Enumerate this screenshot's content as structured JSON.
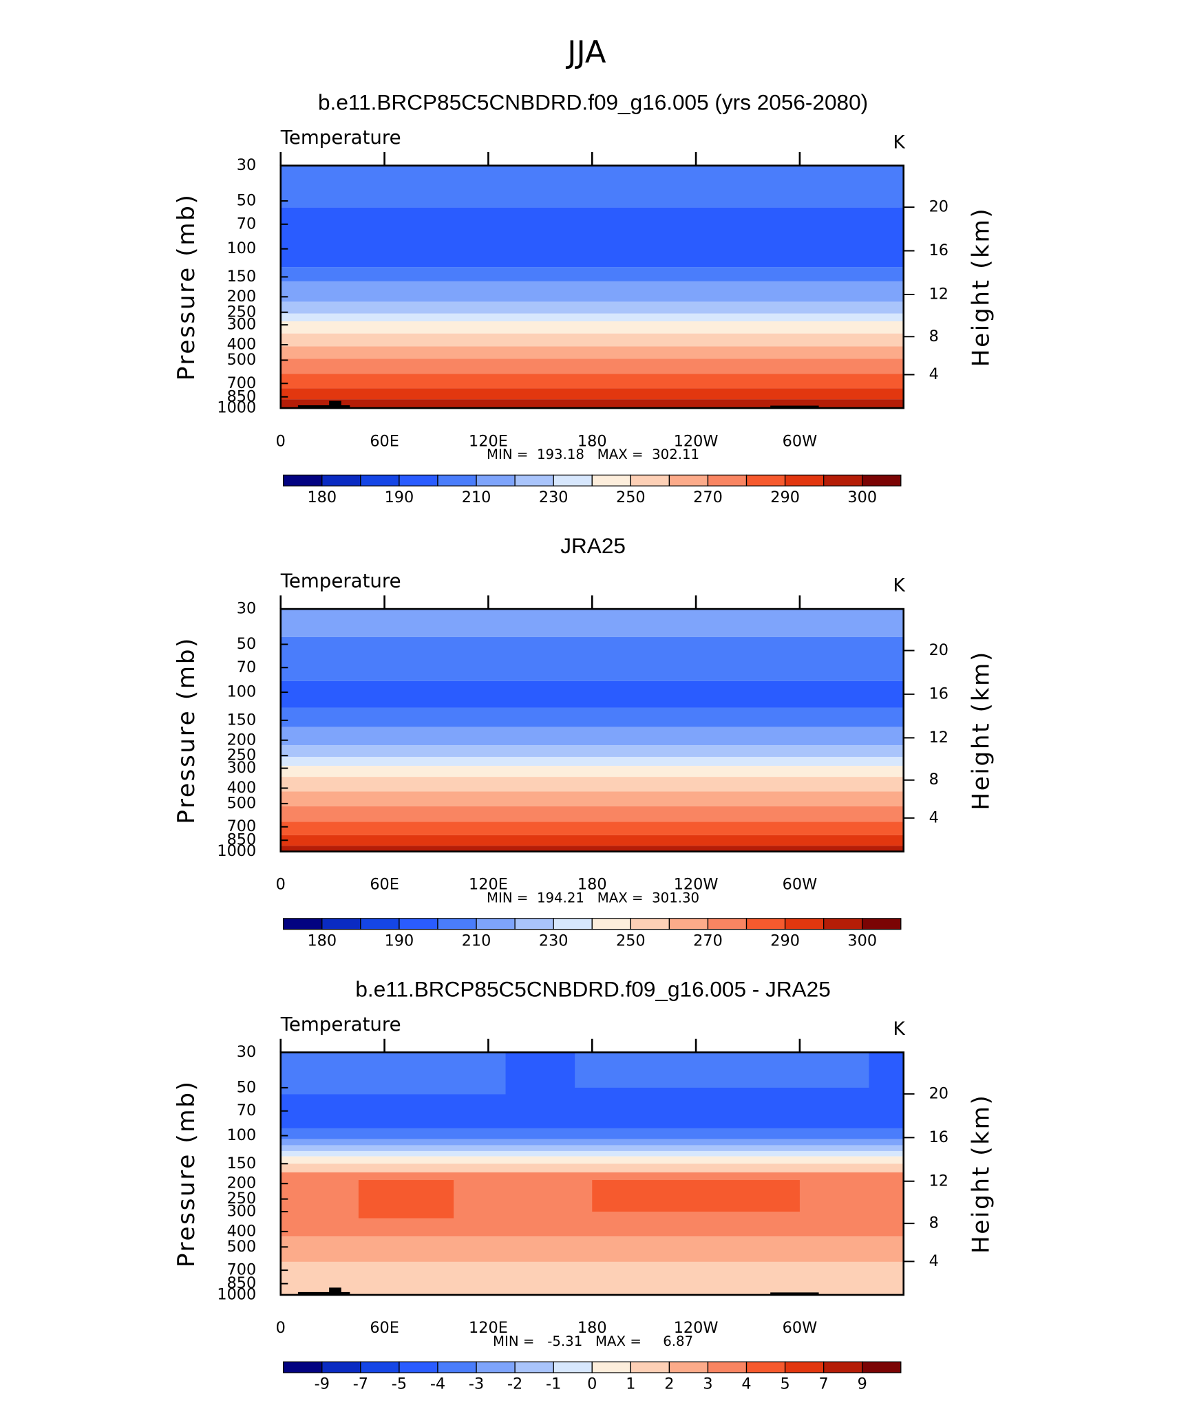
{
  "title": "JJA",
  "chart_data": [
    {
      "type": "contour",
      "title": "b.e11.BRCP85C5CNBDRD.f09_g16.005 (yrs 2056-2080)",
      "subtitle_left": "Temperature",
      "subtitle_right": "K",
      "ylabel": "Pressure (mb)",
      "y2label": "Height (km)",
      "ylim": [
        1000,
        30
      ],
      "log_scale": true,
      "yticks": [
        30,
        50,
        70,
        100,
        150,
        200,
        250,
        300,
        400,
        500,
        700,
        850,
        1000
      ],
      "y2ticks": [
        4,
        8,
        12,
        16,
        20
      ],
      "xlim": [
        0,
        360
      ],
      "xticks": [
        0,
        {
          "value": 60,
          "label": "60E"
        },
        {
          "value": 120,
          "label": "120E"
        },
        180,
        {
          "value": 240,
          "label": "120W"
        },
        {
          "value": 300,
          "label": "60W"
        }
      ],
      "stats": "MIN =  193.18   MAX =  302.11",
      "colorbar": {
        "colors": [
          "#030381",
          "#0a2bc2",
          "#1546e6",
          "#2a5cff",
          "#4a7dfb",
          "#7ea4fb",
          "#a9c4fb",
          "#d7e7fd",
          "#fdeedc",
          "#fdd0b6",
          "#fcab8a",
          "#f98562",
          "#f65a2e",
          "#e2370f",
          "#b51d07",
          "#7b0404"
        ],
        "labels": [
          180,
          190,
          210,
          230,
          250,
          270,
          290,
          300
        ],
        "label_step": 2
      },
      "bands": [
        {
          "top": 30,
          "bottom": 55,
          "color": "#4a7dfb"
        },
        {
          "top": 55,
          "bottom": 130,
          "color": "#2a5cff"
        },
        {
          "top": 130,
          "bottom": 160,
          "color": "#4a7dfb"
        },
        {
          "top": 160,
          "bottom": 215,
          "color": "#7ea4fb"
        },
        {
          "top": 215,
          "bottom": 255,
          "color": "#a9c4fb"
        },
        {
          "top": 255,
          "bottom": 285,
          "color": "#d7e7fd"
        },
        {
          "top": 285,
          "bottom": 340,
          "color": "#fdeedc"
        },
        {
          "top": 340,
          "bottom": 410,
          "color": "#fdd0b6"
        },
        {
          "top": 410,
          "bottom": 490,
          "color": "#fcab8a"
        },
        {
          "top": 490,
          "bottom": 610,
          "color": "#f98562"
        },
        {
          "top": 610,
          "bottom": 750,
          "color": "#f65a2e"
        },
        {
          "top": 750,
          "bottom": 880,
          "color": "#e2370f"
        },
        {
          "top": 880,
          "bottom": 1000,
          "color": "#b51d07"
        },
        {
          "top": 960,
          "bottom": 1000,
          "x0": 10,
          "x1": 40,
          "color": "#000000"
        },
        {
          "top": 900,
          "bottom": 1000,
          "x0": 28,
          "x1": 35,
          "color": "#000000"
        },
        {
          "top": 965,
          "bottom": 1000,
          "x0": 283,
          "x1": 311,
          "color": "#000000"
        }
      ]
    },
    {
      "type": "contour",
      "title": "JRA25",
      "subtitle_left": "Temperature",
      "subtitle_right": "K",
      "ylabel": "Pressure (mb)",
      "y2label": "Height (km)",
      "ylim": [
        1000,
        30
      ],
      "log_scale": true,
      "yticks": [
        30,
        50,
        70,
        100,
        150,
        200,
        250,
        300,
        400,
        500,
        700,
        850,
        1000
      ],
      "y2ticks": [
        4,
        8,
        12,
        16,
        20
      ],
      "xlim": [
        0,
        360
      ],
      "xticks": [
        0,
        {
          "value": 60,
          "label": "60E"
        },
        {
          "value": 120,
          "label": "120E"
        },
        180,
        {
          "value": 240,
          "label": "120W"
        },
        {
          "value": 300,
          "label": "60W"
        }
      ],
      "stats": "MIN =  194.21   MAX =  301.30",
      "colorbar": {
        "colors": [
          "#030381",
          "#0a2bc2",
          "#1546e6",
          "#2a5cff",
          "#4a7dfb",
          "#7ea4fb",
          "#a9c4fb",
          "#d7e7fd",
          "#fdeedc",
          "#fdd0b6",
          "#fcab8a",
          "#f98562",
          "#f65a2e",
          "#e2370f",
          "#b51d07",
          "#7b0404"
        ],
        "labels": [
          180,
          190,
          210,
          230,
          250,
          270,
          290,
          300
        ],
        "label_step": 2
      },
      "bands": [
        {
          "top": 30,
          "bottom": 45,
          "color": "#7ea4fb"
        },
        {
          "top": 45,
          "bottom": 85,
          "color": "#4a7dfb"
        },
        {
          "top": 85,
          "bottom": 125,
          "color": "#2a5cff"
        },
        {
          "top": 125,
          "bottom": 165,
          "color": "#4a7dfb"
        },
        {
          "top": 165,
          "bottom": 215,
          "color": "#7ea4fb"
        },
        {
          "top": 215,
          "bottom": 255,
          "color": "#a9c4fb"
        },
        {
          "top": 255,
          "bottom": 290,
          "color": "#d7e7fd"
        },
        {
          "top": 290,
          "bottom": 340,
          "color": "#fdeedc"
        },
        {
          "top": 340,
          "bottom": 420,
          "color": "#fdd0b6"
        },
        {
          "top": 420,
          "bottom": 520,
          "color": "#fcab8a"
        },
        {
          "top": 520,
          "bottom": 650,
          "color": "#f98562"
        },
        {
          "top": 650,
          "bottom": 790,
          "color": "#f65a2e"
        },
        {
          "top": 790,
          "bottom": 920,
          "color": "#e2370f"
        },
        {
          "top": 920,
          "bottom": 1000,
          "color": "#b51d07"
        }
      ]
    },
    {
      "type": "contour",
      "title": "b.e11.BRCP85C5CNBDRD.f09_g16.005 - JRA25",
      "subtitle_left": "Temperature",
      "subtitle_right": "K",
      "ylabel": "Pressure (mb)",
      "y2label": "Height (km)",
      "ylim": [
        1000,
        30
      ],
      "log_scale": true,
      "yticks": [
        30,
        50,
        70,
        100,
        150,
        200,
        250,
        300,
        400,
        500,
        700,
        850,
        1000
      ],
      "y2ticks": [
        4,
        8,
        12,
        16,
        20
      ],
      "xlim": [
        0,
        360
      ],
      "xticks": [
        0,
        {
          "value": 60,
          "label": "60E"
        },
        {
          "value": 120,
          "label": "120E"
        },
        180,
        {
          "value": 240,
          "label": "120W"
        },
        {
          "value": 300,
          "label": "60W"
        }
      ],
      "stats": "MIN =   -5.31   MAX =     6.87",
      "colorbar": {
        "colors": [
          "#030381",
          "#0a2bc2",
          "#1546e6",
          "#2a5cff",
          "#4a7dfb",
          "#7ea4fb",
          "#a9c4fb",
          "#d7e7fd",
          "#fdeedc",
          "#fdd0b6",
          "#fcab8a",
          "#f98562",
          "#f65a2e",
          "#e2370f",
          "#b51d07",
          "#7b0404"
        ],
        "labels": [
          -9,
          -7,
          -5,
          -4,
          -3,
          -2,
          -1,
          0,
          1,
          2,
          3,
          4,
          5,
          7,
          9
        ],
        "label_step": 1
      },
      "bands": [
        {
          "top": 30,
          "bottom": 90,
          "color": "#2a5cff"
        },
        {
          "top": 30,
          "bottom": 55,
          "x0": 0,
          "x1": 130,
          "color": "#4a7dfb"
        },
        {
          "top": 30,
          "bottom": 50,
          "x0": 170,
          "x1": 340,
          "color": "#4a7dfb"
        },
        {
          "top": 90,
          "bottom": 105,
          "color": "#4a7dfb"
        },
        {
          "top": 105,
          "bottom": 115,
          "color": "#7ea4fb"
        },
        {
          "top": 115,
          "bottom": 125,
          "color": "#a9c4fb"
        },
        {
          "top": 125,
          "bottom": 135,
          "color": "#d7e7fd"
        },
        {
          "top": 135,
          "bottom": 150,
          "color": "#fdeedc"
        },
        {
          "top": 150,
          "bottom": 170,
          "color": "#fdd0b6"
        },
        {
          "top": 170,
          "bottom": 430,
          "color": "#f98562"
        },
        {
          "top": 190,
          "bottom": 330,
          "x0": 45,
          "x1": 100,
          "color": "#f65a2e"
        },
        {
          "top": 190,
          "bottom": 300,
          "x0": 180,
          "x1": 300,
          "color": "#f65a2e"
        },
        {
          "top": 430,
          "bottom": 620,
          "color": "#fcab8a"
        },
        {
          "top": 620,
          "bottom": 1000,
          "color": "#fdd0b6"
        },
        {
          "top": 960,
          "bottom": 1000,
          "x0": 10,
          "x1": 40,
          "color": "#000000"
        },
        {
          "top": 900,
          "bottom": 1000,
          "x0": 28,
          "x1": 35,
          "color": "#000000"
        },
        {
          "top": 965,
          "bottom": 1000,
          "x0": 283,
          "x1": 311,
          "color": "#000000"
        }
      ]
    }
  ]
}
